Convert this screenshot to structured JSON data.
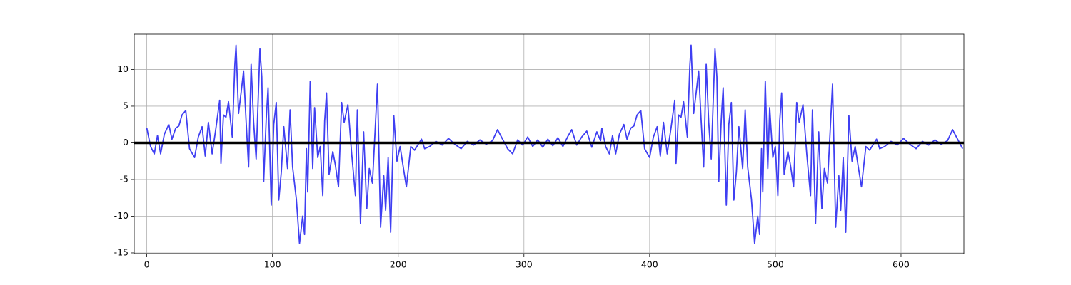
{
  "chart_data": {
    "type": "line",
    "grid": true,
    "xlim": [
      -10,
      650
    ],
    "ylim": [
      -15.1,
      14.8
    ],
    "xticks": [
      0,
      100,
      200,
      300,
      400,
      500,
      600
    ],
    "yticks": [
      -15,
      -10,
      -5,
      0,
      5,
      10
    ],
    "series": [
      {
        "color": "#3f3ff2",
        "x": [
          0,
          3,
          6,
          8.5,
          11,
          14,
          17.5,
          20,
          23,
          25.5,
          28,
          31,
          34,
          38,
          41,
          44,
          46.5,
          49,
          52,
          55,
          58,
          59,
          61,
          63,
          65,
          68,
          70,
          71,
          73,
          75,
          77,
          79,
          81,
          83,
          85,
          87,
          90,
          91.5,
          93,
          95,
          96.5,
          99,
          101,
          103,
          105,
          107,
          109,
          112,
          114,
          116,
          119,
          121.5,
          124,
          125.5,
          127,
          128,
          130,
          132,
          133.5,
          136,
          138,
          140,
          141.5,
          143,
          145,
          148,
          150,
          152.5,
          155,
          157,
          160,
          163,
          166,
          167.5,
          170,
          172.5,
          175,
          177,
          179.5,
          183.5,
          186,
          188.5,
          190,
          192,
          194,
          196.5,
          199,
          201.5,
          204,
          206.5,
          210,
          213,
          218.5,
          221,
          225,
          230,
          235,
          240,
          245,
          250,
          255,
          260,
          265,
          270,
          275,
          279,
          283,
          287,
          291,
          295,
          299,
          303,
          307,
          311,
          315,
          319,
          323,
          327,
          331,
          335,
          338,
          342,
          346,
          350,
          354,
          358,
          361,
          362,
          365,
          368,
          370.5,
          373,
          376,
          379.5,
          382,
          385,
          387.5,
          390,
          393,
          396,
          400,
          403,
          406,
          408.5,
          411,
          414,
          417,
          420,
          421,
          423,
          425,
          427,
          430,
          432,
          433,
          435,
          437,
          439,
          441,
          443,
          445,
          447,
          449,
          452,
          453.5,
          455,
          457,
          458.5,
          461,
          463,
          465,
          467,
          469,
          471,
          474,
          476,
          478,
          481,
          483.5,
          486,
          487.5,
          489,
          490,
          492,
          494,
          495.5,
          498,
          500,
          502,
          503.5,
          505,
          507,
          510,
          512,
          514.5,
          517,
          519,
          522,
          525,
          528,
          529.5,
          532,
          534.5,
          537,
          539,
          541.5,
          545.5,
          548,
          550.5,
          552,
          554,
          556,
          558.5,
          561,
          563.5,
          566,
          568.5,
          572,
          575,
          580.5,
          583,
          587,
          592,
          597,
          602,
          607,
          612,
          617,
          622,
          627,
          632,
          637,
          641,
          645,
          649
        ],
        "values": [
          2.0,
          -0.5,
          -1.5,
          1.0,
          -1.5,
          1.2,
          2.5,
          0.5,
          2.0,
          2.3,
          3.8,
          4.4,
          -0.8,
          -2.0,
          0.8,
          2.2,
          -1.8,
          2.8,
          -1.5,
          2.0,
          5.8,
          -2.8,
          3.8,
          3.5,
          5.6,
          0.8,
          10.5,
          13.3,
          4.0,
          6.8,
          9.8,
          3.0,
          -3.3,
          10.7,
          2.8,
          -2.2,
          12.8,
          9.0,
          -5.3,
          3.2,
          7.5,
          -8.5,
          2.5,
          5.5,
          -7.8,
          -4.0,
          2.2,
          -3.5,
          4.5,
          -3.3,
          -7.7,
          -13.7,
          -10.0,
          -12.5,
          -0.8,
          -6.7,
          8.4,
          -3.5,
          4.8,
          -2.0,
          -0.5,
          -7.2,
          3.0,
          6.8,
          -4.3,
          -1.2,
          -3.0,
          -6.0,
          5.5,
          2.8,
          5.2,
          -1.5,
          -7.2,
          4.5,
          -11.0,
          1.5,
          -9.0,
          -3.5,
          -5.5,
          8.0,
          -11.5,
          -4.5,
          -9.2,
          -2.0,
          -12.2,
          3.7,
          -2.5,
          -0.5,
          -3.3,
          -6.0,
          -0.5,
          -1.0,
          0.5,
          -0.8,
          -0.5,
          0.2,
          -0.3,
          0.6,
          -0.2,
          -0.8,
          0.2,
          -0.3,
          0.4,
          -0.2,
          0.3,
          1.8,
          0.5,
          -0.8,
          -1.5,
          0.4,
          -0.3,
          0.8,
          -0.5,
          0.4,
          -0.6,
          0.5,
          -0.4,
          0.7,
          -0.5,
          0.9,
          1.8,
          -0.3,
          0.8,
          1.6,
          -0.6,
          1.5,
          0.3,
          2.0,
          -0.5,
          -1.5,
          1.0,
          -1.5,
          1.2,
          2.5,
          0.5,
          2.0,
          2.3,
          3.8,
          4.4,
          -0.8,
          -2.0,
          0.8,
          2.2,
          -1.8,
          2.8,
          -1.5,
          2.0,
          5.8,
          -2.8,
          3.8,
          3.5,
          5.6,
          0.8,
          10.5,
          13.3,
          4.0,
          6.8,
          9.8,
          3.0,
          -3.3,
          10.7,
          2.8,
          -2.2,
          12.8,
          9.0,
          -5.3,
          3.2,
          7.5,
          -8.5,
          2.5,
          5.5,
          -7.8,
          -4.0,
          2.2,
          -3.5,
          4.5,
          -3.3,
          -7.7,
          -13.7,
          -10.0,
          -12.5,
          -0.8,
          -6.7,
          8.4,
          -3.5,
          4.8,
          -2.0,
          -0.5,
          -7.2,
          3.0,
          6.8,
          -4.3,
          -1.2,
          -3.0,
          -6.0,
          5.5,
          2.8,
          5.2,
          -1.5,
          -7.2,
          4.5,
          -11.0,
          1.5,
          -9.0,
          -3.5,
          -5.5,
          8.0,
          -11.5,
          -4.5,
          -9.2,
          -2.0,
          -12.2,
          3.7,
          -2.5,
          -0.5,
          -3.3,
          -6.0,
          -0.5,
          -1.0,
          0.5,
          -0.8,
          -0.5,
          0.2,
          -0.3,
          0.6,
          -0.2,
          -0.8,
          0.2,
          -0.3,
          0.4,
          -0.2,
          0.3,
          1.8,
          0.5,
          -0.8
        ]
      },
      {
        "color": "#000000",
        "x": [
          -10,
          650
        ],
        "values": [
          0,
          0
        ]
      }
    ]
  }
}
